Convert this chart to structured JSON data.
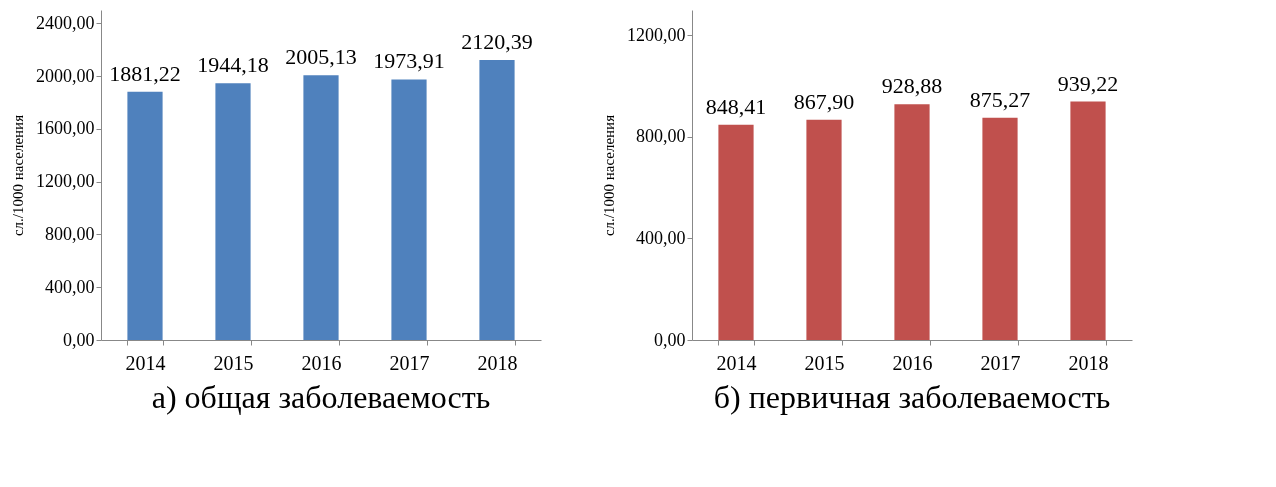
{
  "chart_data": [
    {
      "type": "bar",
      "title": "а) общая заболеваемость",
      "ylabel": "сл./1000 населения",
      "categories": [
        "2014",
        "2015",
        "2016",
        "2017",
        "2018"
      ],
      "values": [
        1881.22,
        1944.18,
        2005.13,
        1973.91,
        2120.39
      ],
      "value_labels": [
        "1881,22",
        "1944,18",
        "2005,13",
        "1973,91",
        "2120,39"
      ],
      "color": "#4f81bd",
      "ylim": [
        0,
        2500
      ],
      "yticks": [
        {
          "value": 0,
          "label": "0,00"
        },
        {
          "value": 400,
          "label": "400,00"
        },
        {
          "value": 800,
          "label": "800,00"
        },
        {
          "value": 1200,
          "label": "1200,00"
        },
        {
          "value": 1600,
          "label": "1600,00"
        },
        {
          "value": 2000,
          "label": "2000,00"
        },
        {
          "value": 2400,
          "label": "2400,00"
        }
      ],
      "grid": false
    },
    {
      "type": "bar",
      "title": "б) первичная заболеваемость",
      "ylabel": "сл./1000 населения",
      "categories": [
        "2014",
        "2015",
        "2016",
        "2017",
        "2018"
      ],
      "values": [
        848.41,
        867.9,
        928.88,
        875.27,
        939.22
      ],
      "value_labels": [
        "848,41",
        "867,90",
        "928,88",
        "875,27",
        "939,22"
      ],
      "color": "#c0504d",
      "ylim": [
        0,
        1300
      ],
      "yticks": [
        {
          "value": 0,
          "label": "0,00"
        },
        {
          "value": 400,
          "label": "400,00"
        },
        {
          "value": 800,
          "label": "800,00"
        },
        {
          "value": 1200,
          "label": "1200,00"
        }
      ],
      "grid": false
    }
  ]
}
